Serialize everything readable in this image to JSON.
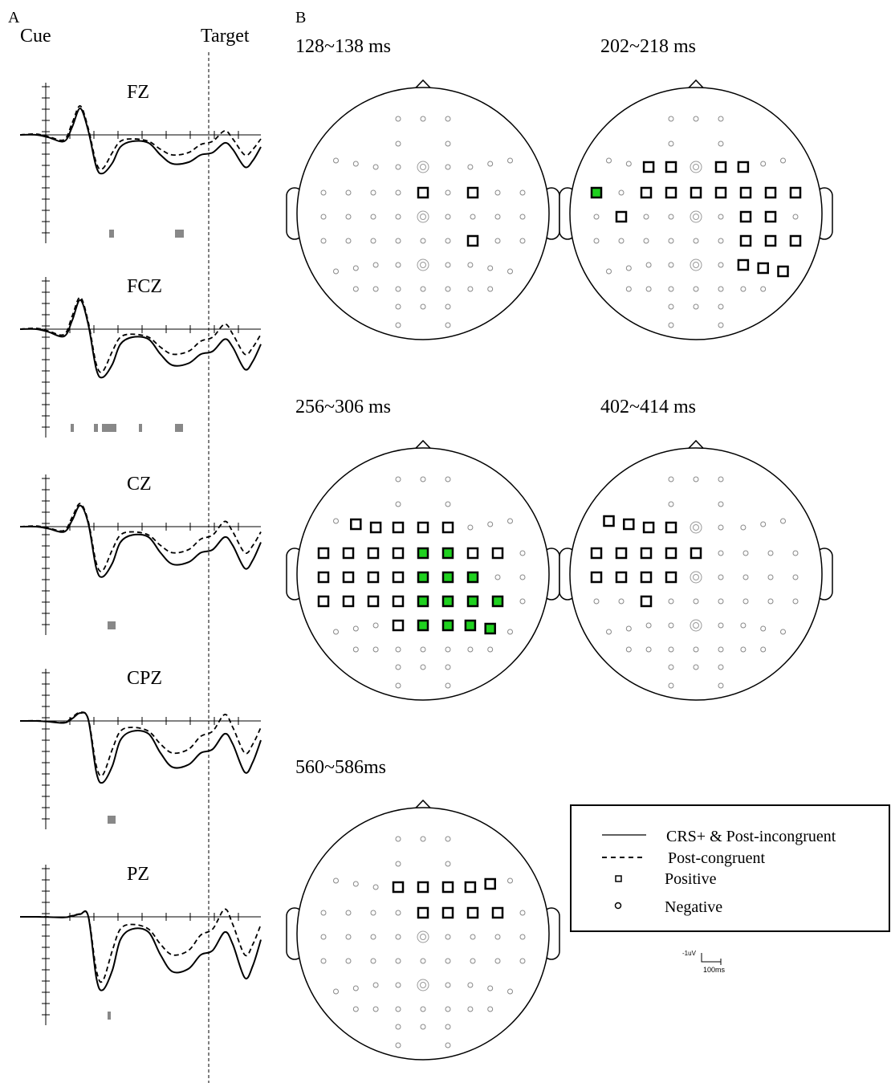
{
  "panel_a": {
    "label": "A",
    "cue": "Cue",
    "target": "Target",
    "channels": [
      "FZ",
      "FCZ",
      "CZ",
      "CPZ",
      "PZ"
    ]
  },
  "panel_b": {
    "label": "B",
    "maps": [
      "128~138 ms",
      "202~218 ms",
      "256~306 ms",
      "402~414 ms",
      "560~586ms"
    ]
  },
  "legend": {
    "entries": [
      "CRS+ & Post-incongruent",
      "Post-congruent",
      "Positive",
      "Negative"
    ]
  },
  "scale": {
    "voltage": "-1uV",
    "time": "100ms"
  }
}
